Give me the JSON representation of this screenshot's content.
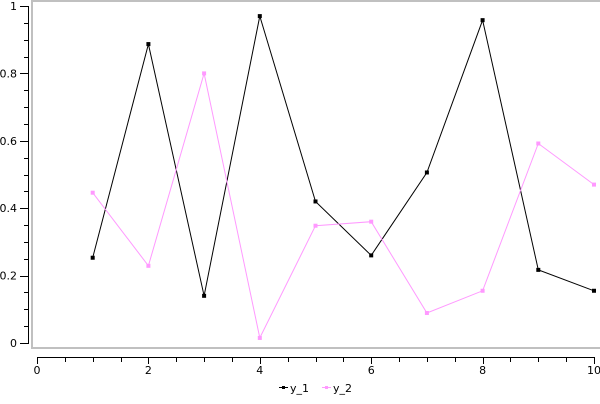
{
  "chart_data": {
    "type": "line",
    "title": "",
    "xlabel": "",
    "ylabel": "",
    "xlim": [
      0,
      10
    ],
    "ylim": [
      0,
      1
    ],
    "grid": false,
    "legend_placement": "bottom",
    "x_ticks": [
      "0",
      "2",
      "4",
      "6",
      "8",
      "10"
    ],
    "y_ticks": [
      "0",
      "0.2",
      "0.4",
      "0.6",
      "0.8",
      "1"
    ],
    "x": [
      1,
      2,
      3,
      4,
      5,
      6,
      7,
      8,
      9,
      10
    ],
    "series": [
      {
        "name": "y_1",
        "color": "#000000",
        "values": [
          0.253,
          0.887,
          0.14,
          0.97,
          0.42,
          0.26,
          0.506,
          0.958,
          0.217,
          0.155
        ]
      },
      {
        "name": "y_2",
        "color": "#ff99ff",
        "values": [
          0.446,
          0.229,
          0.8,
          0.015,
          0.348,
          0.36,
          0.089,
          0.155,
          0.592,
          0.47
        ]
      }
    ]
  }
}
